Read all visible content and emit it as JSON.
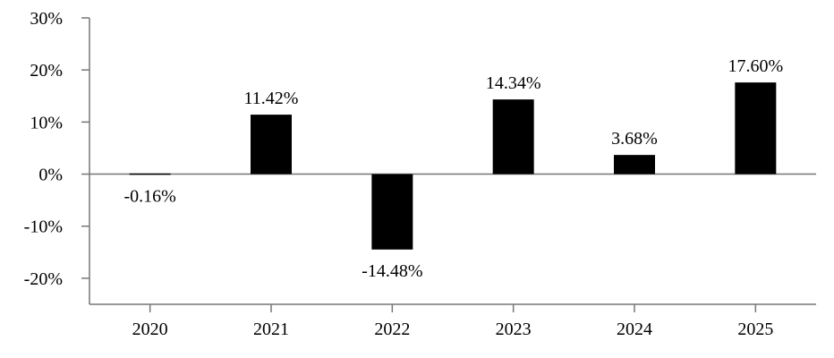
{
  "chart_data": {
    "type": "bar",
    "categories": [
      "2020",
      "2021",
      "2022",
      "2023",
      "2024",
      "2025"
    ],
    "values": [
      -0.16,
      11.42,
      -14.48,
      14.34,
      3.68,
      17.6
    ],
    "data_labels": [
      "-0.16%",
      "11.42%",
      "-14.48%",
      "14.34%",
      "3.68%",
      "17.60%"
    ],
    "y_ticks": [
      30,
      20,
      10,
      0,
      -10,
      -20
    ],
    "y_tick_labels": [
      "30%",
      "20%",
      "10%",
      "0%",
      "-10%",
      "-20%"
    ],
    "ylim": [
      -25,
      30
    ],
    "title": "",
    "xlabel": "",
    "ylabel": "",
    "grid": false,
    "legend": "none",
    "colors": {
      "bar": "#000000",
      "axis": "#777777",
      "text": "#000000"
    }
  }
}
